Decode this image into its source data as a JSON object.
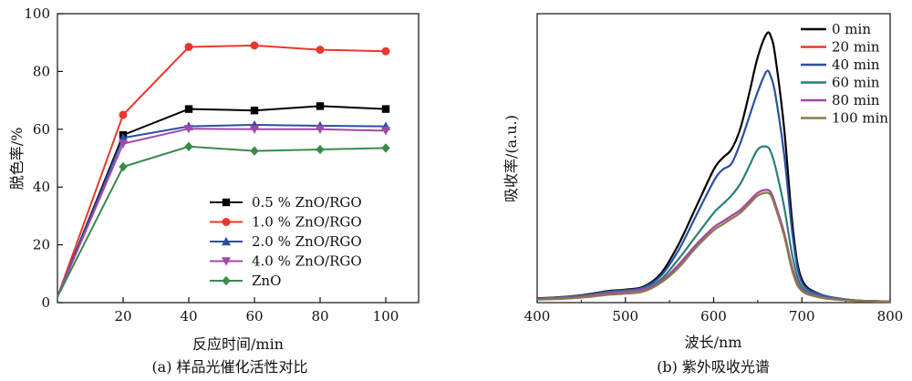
{
  "chart_data": [
    {
      "type": "line",
      "caption": "(a) 样品光催化活性对比",
      "xlabel": "反应时间/min",
      "ylabel": "脱色率/%",
      "xlim": [
        0,
        110
      ],
      "ylim": [
        0,
        100
      ],
      "x_ticks": [
        20,
        40,
        60,
        80,
        100
      ],
      "y_ticks": [
        0,
        20,
        40,
        60,
        80,
        100
      ],
      "legend_position": "lower-right",
      "series": [
        {
          "name": "0.5 % ZnO/RGO",
          "color": "#000000",
          "marker": "square",
          "x": [
            0,
            20,
            40,
            60,
            80,
            100
          ],
          "y": [
            2,
            58,
            67,
            66.5,
            68,
            67
          ]
        },
        {
          "name": "1.0 % ZnO/RGO",
          "color": "#e8392c",
          "marker": "circle",
          "x": [
            0,
            20,
            40,
            60,
            80,
            100
          ],
          "y": [
            2,
            65,
            88.5,
            89,
            87.5,
            87
          ]
        },
        {
          "name": "2.0 % ZnO/RGO",
          "color": "#2b4fa2",
          "marker": "triangle-up",
          "x": [
            0,
            20,
            40,
            60,
            80,
            100
          ],
          "y": [
            2,
            57,
            61,
            61.5,
            61.2,
            61
          ]
        },
        {
          "name": "4.0 % ZnO/RGO",
          "color": "#a249a8",
          "marker": "triangle-down",
          "x": [
            0,
            20,
            40,
            60,
            80,
            100
          ],
          "y": [
            2,
            55,
            60.2,
            60,
            60,
            59.5
          ]
        },
        {
          "name": "ZnO",
          "color": "#3a8a4a",
          "marker": "diamond",
          "x": [
            0,
            20,
            40,
            60,
            80,
            100
          ],
          "y": [
            2,
            47,
            54,
            52.5,
            53,
            53.5
          ]
        }
      ]
    },
    {
      "type": "line",
      "caption": "(b) 紫外吸收光谱",
      "xlabel": "波长/nm",
      "ylabel": "吸收率/(a.u.)",
      "xlim": [
        400,
        800
      ],
      "ylim": [
        0,
        1.0
      ],
      "x_ticks": [
        400,
        500,
        600,
        700,
        800
      ],
      "y_ticks_shown": false,
      "legend_position": "top-right",
      "series": [
        {
          "name": "0 min",
          "color": "#000000",
          "x": [
            400,
            420,
            440,
            460,
            480,
            500,
            520,
            540,
            560,
            580,
            600,
            610,
            620,
            630,
            640,
            650,
            660,
            665,
            670,
            680,
            690,
            700,
            720,
            740,
            760,
            780,
            800
          ],
          "y": [
            0.015,
            0.018,
            0.022,
            0.03,
            0.04,
            0.045,
            0.055,
            0.1,
            0.2,
            0.33,
            0.46,
            0.5,
            0.53,
            0.6,
            0.72,
            0.85,
            0.93,
            0.92,
            0.85,
            0.6,
            0.25,
            0.08,
            0.03,
            0.015,
            0.008,
            0.005,
            0.004
          ]
        },
        {
          "name": "20 min",
          "color": "#e8392c",
          "x": [
            400,
            420,
            440,
            460,
            480,
            500,
            520,
            540,
            560,
            580,
            600,
            610,
            620,
            630,
            640,
            650,
            660,
            665,
            670,
            680,
            690,
            700,
            720,
            740,
            760,
            780,
            800
          ],
          "y": [
            0.012,
            0.015,
            0.018,
            0.025,
            0.033,
            0.038,
            0.045,
            0.072,
            0.13,
            0.2,
            0.26,
            0.28,
            0.3,
            0.32,
            0.35,
            0.38,
            0.39,
            0.38,
            0.34,
            0.24,
            0.11,
            0.045,
            0.02,
            0.012,
            0.007,
            0.005,
            0.004
          ]
        },
        {
          "name": "40 min",
          "color": "#2b4fa2",
          "x": [
            400,
            420,
            440,
            460,
            480,
            500,
            520,
            540,
            560,
            580,
            600,
            610,
            620,
            630,
            640,
            650,
            660,
            665,
            670,
            680,
            690,
            700,
            720,
            740,
            760,
            780,
            800
          ],
          "y": [
            0.014,
            0.017,
            0.021,
            0.028,
            0.038,
            0.043,
            0.052,
            0.092,
            0.18,
            0.3,
            0.42,
            0.46,
            0.48,
            0.55,
            0.64,
            0.73,
            0.8,
            0.78,
            0.72,
            0.51,
            0.22,
            0.07,
            0.03,
            0.015,
            0.008,
            0.005,
            0.004
          ]
        },
        {
          "name": "60 min",
          "color": "#27807a",
          "x": [
            400,
            420,
            440,
            460,
            480,
            500,
            520,
            540,
            560,
            580,
            600,
            610,
            620,
            630,
            640,
            650,
            660,
            665,
            670,
            680,
            690,
            700,
            720,
            740,
            760,
            780,
            800
          ],
          "y": [
            0.013,
            0.016,
            0.02,
            0.026,
            0.035,
            0.04,
            0.048,
            0.08,
            0.15,
            0.23,
            0.31,
            0.34,
            0.37,
            0.41,
            0.47,
            0.53,
            0.54,
            0.52,
            0.47,
            0.33,
            0.15,
            0.055,
            0.024,
            0.013,
            0.007,
            0.005,
            0.004
          ]
        },
        {
          "name": "80 min",
          "color": "#a249a8",
          "x": [
            400,
            420,
            440,
            460,
            480,
            500,
            520,
            540,
            560,
            580,
            600,
            610,
            620,
            630,
            640,
            650,
            660,
            665,
            670,
            680,
            690,
            700,
            720,
            740,
            760,
            780,
            800
          ],
          "y": [
            0.012,
            0.015,
            0.018,
            0.025,
            0.033,
            0.038,
            0.045,
            0.073,
            0.13,
            0.2,
            0.26,
            0.28,
            0.3,
            0.32,
            0.35,
            0.38,
            0.39,
            0.38,
            0.34,
            0.24,
            0.11,
            0.045,
            0.02,
            0.012,
            0.007,
            0.005,
            0.004
          ]
        },
        {
          "name": "100 min",
          "color": "#8a7a4a",
          "x": [
            400,
            420,
            440,
            460,
            480,
            500,
            520,
            540,
            560,
            580,
            600,
            610,
            620,
            630,
            640,
            650,
            660,
            665,
            670,
            680,
            690,
            700,
            720,
            740,
            760,
            780,
            800
          ],
          "y": [
            0.01,
            0.012,
            0.015,
            0.02,
            0.027,
            0.031,
            0.038,
            0.068,
            0.12,
            0.19,
            0.25,
            0.27,
            0.29,
            0.31,
            0.34,
            0.37,
            0.38,
            0.37,
            0.33,
            0.23,
            0.1,
            0.04,
            0.018,
            0.01,
            0.006,
            0.004,
            0.003
          ]
        }
      ]
    }
  ]
}
